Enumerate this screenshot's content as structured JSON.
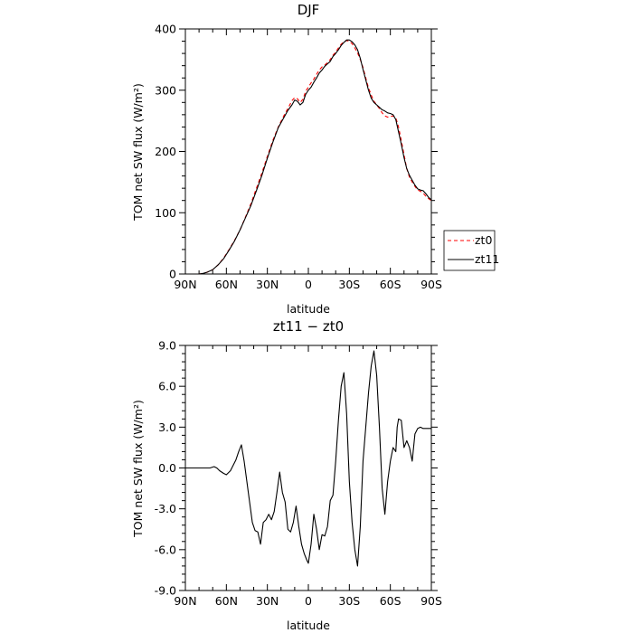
{
  "chart_data": [
    {
      "type": "line",
      "title": "DJF",
      "xlabel": "latitude",
      "ylabel": "TOM net SW flux (W/m²)",
      "xlim": [
        -90,
        90
      ],
      "ylim": [
        0,
        400
      ],
      "xticks": [
        -90,
        -60,
        -30,
        0,
        30,
        60,
        90
      ],
      "xtick_labels": [
        "90N",
        "60N",
        "30N",
        "0",
        "30S",
        "60S",
        "90S"
      ],
      "yticks": [
        0,
        100,
        200,
        300,
        400
      ],
      "ytick_labels": [
        "0",
        "100",
        "200",
        "300",
        "400"
      ],
      "legend": {
        "placement": "outside-right"
      },
      "series": [
        {
          "name": "zt0",
          "color": "#ff0000",
          "dash": "dashed",
          "x": [
            -80,
            -77,
            -74,
            -70,
            -66,
            -62,
            -58,
            -54,
            -50,
            -46,
            -42,
            -38,
            -34,
            -30,
            -26,
            -22,
            -18,
            -15,
            -12,
            -10,
            -8,
            -6,
            -4,
            -2,
            0,
            2,
            4,
            6,
            8,
            10,
            12,
            14,
            16,
            18,
            20,
            22,
            24,
            26,
            28,
            30,
            32,
            34,
            36,
            38,
            40,
            42,
            44,
            46,
            48,
            50,
            52,
            54,
            56,
            58,
            60,
            62,
            64,
            66,
            68,
            70,
            72,
            74,
            76,
            78,
            80,
            82,
            84,
            86,
            88,
            90
          ],
          "y": [
            0,
            1,
            3,
            7,
            15,
            26,
            40,
            55,
            72,
            93,
            115,
            140,
            165,
            192,
            218,
            240,
            258,
            270,
            283,
            288,
            286,
            280,
            285,
            298,
            305,
            312,
            318,
            326,
            333,
            338,
            341,
            345,
            350,
            357,
            362,
            369,
            375,
            379,
            381,
            380,
            376,
            369,
            361,
            350,
            337,
            320,
            304,
            292,
            282,
            276,
            270,
            263,
            258,
            256,
            257,
            258,
            255,
            240,
            218,
            195,
            172,
            158,
            150,
            143,
            137,
            135,
            132,
            127,
            123,
            120
          ]
        },
        {
          "name": "zt11",
          "color": "#000000",
          "dash": "solid",
          "x": [
            -80,
            -77,
            -74,
            -70,
            -66,
            -62,
            -58,
            -54,
            -50,
            -46,
            -42,
            -38,
            -34,
            -30,
            -26,
            -22,
            -18,
            -15,
            -12,
            -10,
            -8,
            -6,
            -4,
            -2,
            0,
            2,
            4,
            6,
            8,
            10,
            12,
            14,
            16,
            18,
            20,
            22,
            24,
            26,
            28,
            30,
            32,
            34,
            36,
            38,
            40,
            42,
            44,
            46,
            48,
            50,
            52,
            54,
            56,
            58,
            60,
            62,
            64,
            66,
            68,
            70,
            72,
            74,
            76,
            78,
            80,
            82,
            84,
            86,
            88,
            90
          ],
          "y": [
            0,
            1,
            3,
            7,
            15,
            25,
            39,
            54,
            72,
            92,
            112,
            136,
            161,
            189,
            215,
            239,
            255,
            267,
            276,
            284,
            282,
            276,
            280,
            293,
            300,
            305,
            313,
            320,
            328,
            333,
            339,
            343,
            347,
            355,
            360,
            366,
            373,
            378,
            382,
            382,
            379,
            374,
            366,
            352,
            334,
            317,
            300,
            287,
            280,
            276,
            272,
            268,
            266,
            263,
            262,
            260,
            252,
            232,
            212,
            190,
            172,
            161,
            153,
            145,
            139,
            137,
            136,
            131,
            125,
            121
          ]
        }
      ]
    },
    {
      "type": "line",
      "title": "zt11 − zt0",
      "xlabel": "latitude",
      "ylabel": "TOM net SW flux (W/m²)",
      "xlim": [
        -90,
        90
      ],
      "ylim": [
        -9,
        9
      ],
      "xticks": [
        -90,
        -60,
        -30,
        0,
        30,
        60,
        90
      ],
      "xtick_labels": [
        "90N",
        "60N",
        "30N",
        "0",
        "30S",
        "60S",
        "90S"
      ],
      "yticks": [
        -9,
        -6,
        -3,
        0,
        3,
        6,
        9
      ],
      "ytick_labels": [
        "-9.0",
        "-6.0",
        "-3.0",
        "0.0",
        "3.0",
        "6.0",
        "9.0"
      ],
      "series": [
        {
          "color": "#000000",
          "dash": "solid",
          "x": [
            -90,
            -80,
            -72,
            -69,
            -67,
            -65,
            -62,
            -60,
            -57,
            -55,
            -53,
            -51,
            -49,
            -47,
            -45,
            -43,
            -41,
            -39,
            -37,
            -35,
            -33,
            -31,
            -29,
            -27,
            -25,
            -23,
            -21,
            -19,
            -17,
            -15,
            -13,
            -11,
            -9,
            -7,
            -5,
            -3,
            -1,
            0,
            2,
            4,
            6,
            8,
            10,
            12,
            14,
            16,
            18,
            20,
            22,
            24,
            26,
            28,
            30,
            32,
            34,
            36,
            38,
            40,
            42,
            44,
            46,
            48,
            50,
            52,
            54,
            56,
            58,
            60,
            62,
            64,
            65,
            66,
            68,
            70,
            72,
            74,
            76,
            78,
            80,
            82,
            84,
            86,
            88,
            90
          ],
          "y": [
            0,
            0,
            0,
            0.1,
            0,
            -0.2,
            -0.4,
            -0.5,
            -0.2,
            0.2,
            0.6,
            1.2,
            1.7,
            0.5,
            -1.0,
            -2.5,
            -4.0,
            -4.6,
            -4.7,
            -5.6,
            -4.0,
            -3.8,
            -3.4,
            -3.8,
            -3.2,
            -1.8,
            -0.3,
            -1.8,
            -2.5,
            -4.5,
            -4.7,
            -4.0,
            -2.8,
            -4.3,
            -5.6,
            -6.3,
            -6.8,
            -7.0,
            -5.6,
            -3.4,
            -4.5,
            -6.0,
            -4.9,
            -5.0,
            -4.3,
            -2.4,
            -2.0,
            0.5,
            3.5,
            6.0,
            7.0,
            4.0,
            -1.0,
            -4.0,
            -6.0,
            -7.2,
            -4.3,
            0.5,
            3.0,
            5.5,
            7.5,
            8.6,
            6.8,
            3.0,
            -1.5,
            -3.4,
            -1.0,
            0.5,
            1.5,
            1.2,
            3.0,
            3.6,
            3.5,
            1.5,
            2.0,
            1.5,
            0.5,
            2.5,
            2.9,
            3.0,
            2.9,
            2.9,
            2.9,
            2.9
          ]
        }
      ]
    }
  ]
}
